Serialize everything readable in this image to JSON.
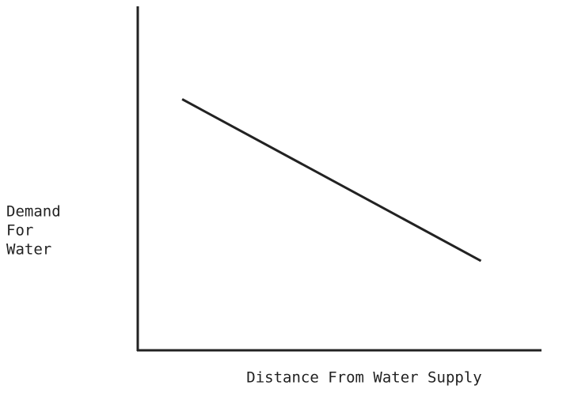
{
  "chart_data": {
    "type": "line",
    "xlabel": "Distance From Water Supply",
    "ylabel": [
      "Demand",
      "For",
      "Water"
    ],
    "x": [
      11,
      85
    ],
    "values": [
      73,
      26
    ],
    "color": "#222222",
    "xlim": [
      0,
      100
    ],
    "ylim": [
      0,
      100
    ]
  }
}
